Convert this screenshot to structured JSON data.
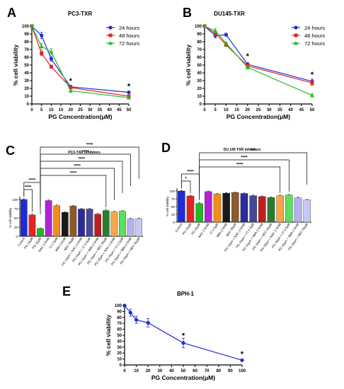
{
  "panel_letters": [
    "A",
    "B",
    "C",
    "D",
    "E"
  ],
  "colors": {
    "blue": "#1f2bd6",
    "red": "#e8231f",
    "green": "#22b922",
    "axis": "#000000"
  },
  "chart_data": [
    {
      "id": "A",
      "type": "line",
      "title": "PC3-TXR",
      "xlabel": "PG Concentration(μM)",
      "ylabel": "% cell viability",
      "xlim": [
        0,
        50
      ],
      "ylim": [
        0,
        100
      ],
      "xticks": [
        0,
        5,
        10,
        15,
        20,
        25,
        30,
        35,
        40,
        45,
        50
      ],
      "yticks": [
        0,
        10,
        20,
        30,
        40,
        50,
        60,
        70,
        80,
        90,
        100
      ],
      "x": [
        0,
        5,
        10,
        20,
        50
      ],
      "series": [
        {
          "name": "24 hours",
          "color": "#1f2bd6",
          "marker": "circle",
          "values": [
            100,
            88,
            58,
            22,
            15
          ],
          "err": [
            0,
            4,
            3,
            2,
            1
          ]
        },
        {
          "name": "48 hours",
          "color": "#e8231f",
          "marker": "square",
          "values": [
            100,
            65,
            48,
            21,
            10
          ],
          "err": [
            0,
            3,
            2,
            2,
            1
          ]
        },
        {
          "name": "72 hours",
          "color": "#22b922",
          "marker": "triangle",
          "values": [
            100,
            74,
            67,
            17,
            8
          ],
          "err": [
            0,
            4,
            4,
            2,
            1
          ]
        }
      ],
      "annotations": [
        {
          "x": 20,
          "y": 30,
          "text": "*"
        },
        {
          "x": 50,
          "y": 23,
          "text": "*"
        }
      ],
      "legend": "top-right"
    },
    {
      "id": "B",
      "type": "line",
      "title": "DU145-TXR",
      "xlabel": "PG Concentration(μM)",
      "ylabel": "% cell viability",
      "xlim": [
        0,
        50
      ],
      "ylim": [
        0,
        100
      ],
      "xticks": [
        0,
        5,
        10,
        15,
        20,
        25,
        30,
        35,
        40,
        45,
        50
      ],
      "yticks": [
        0,
        10,
        20,
        30,
        40,
        50,
        60,
        70,
        80,
        90,
        100
      ],
      "x": [
        0,
        5,
        10,
        20,
        50
      ],
      "series": [
        {
          "name": "24 hours",
          "color": "#1f2bd6",
          "marker": "circle",
          "values": [
            100,
            88,
            89,
            51,
            29
          ],
          "err": [
            0,
            3,
            2,
            2,
            3
          ]
        },
        {
          "name": "48 hours",
          "color": "#e8231f",
          "marker": "square",
          "values": [
            100,
            91,
            76,
            49,
            27
          ],
          "err": [
            0,
            3,
            2,
            2,
            3
          ]
        },
        {
          "name": "72 hours",
          "color": "#22b922",
          "marker": "triangle",
          "values": [
            100,
            94,
            78,
            47,
            11
          ],
          "err": [
            0,
            3,
            2,
            2,
            2
          ]
        }
      ],
      "annotations": [
        {
          "x": 20,
          "y": 62,
          "text": "*"
        },
        {
          "x": 50,
          "y": 38,
          "text": "*"
        }
      ],
      "legend": "top-right"
    },
    {
      "id": "C",
      "type": "bar",
      "title": "PC3-TXR inhibitors",
      "ylabel": "% cell viability",
      "ylim": [
        0,
        100
      ],
      "yticks": [
        0,
        25,
        50,
        75,
        100
      ],
      "categories": [
        "Control",
        "PG 10μM",
        "PG 20μM",
        "NAC 2.5mM",
        "Cl 2.5μM",
        "3MA 2.5mM",
        "NEC 50μM",
        "PG 10μm + NAC 2.5mM",
        "PG 10μm + Cl 2.5μM",
        "PG 10μm + 3MA 2.5mM",
        "PG 10μm + NEC 50μM",
        "PG 20μm + NAC 2.5mM",
        "PG 20μm + Cl 2.5μM",
        "PG 20μm + 3MA 2.5mM",
        "PG 20μm + NEC 50μM"
      ],
      "values": [
        100,
        58,
        21,
        97,
        83,
        65,
        82,
        74,
        74,
        60,
        70,
        66,
        68,
        47,
        48
      ],
      "err": [
        2,
        2,
        2,
        2,
        2,
        2,
        2,
        2,
        2,
        2,
        2,
        2,
        2,
        2,
        2
      ],
      "colors": [
        "#1f2bd6",
        "#e8231f",
        "#22b922",
        "#b322d8",
        "#f28c1c",
        "#1a1a1a",
        "#8c5a2b",
        "#2b2b9b",
        "#47479a",
        "#c11d1d",
        "#2e7a2e",
        "#f6a64a",
        "#5ae05a",
        "#b2b2f0",
        "#c8c8f5"
      ],
      "brackets": [
        {
          "from": 0,
          "to": 1,
          "text": "****",
          "level": 1
        },
        {
          "from": 0,
          "to": 2,
          "text": "****",
          "level": 2
        },
        {
          "from": 2,
          "to": 10,
          "text": "****",
          "level": 3
        },
        {
          "from": 2,
          "to": 11,
          "text": "****",
          "level": 4
        },
        {
          "from": 2,
          "to": 12,
          "text": "****",
          "level": 5
        },
        {
          "from": 2,
          "to": 13,
          "text": "****",
          "level": 6
        },
        {
          "from": 2,
          "to": 14,
          "text": "****",
          "level": 7
        }
      ]
    },
    {
      "id": "D",
      "type": "bar",
      "title": "DU 145 TXR inhibitors",
      "ylabel": "% cell viability",
      "ylim": [
        0,
        100
      ],
      "yticks": [
        0,
        25,
        50,
        75,
        100
      ],
      "categories": [
        "Control",
        "PG 10μM",
        "PG 20μM",
        "NAC 2.5mM",
        "Cl 2.5μM",
        "3MA 2.5mM",
        "NEC 50μM",
        "PG 10μm + NAC 2.5mM",
        "PG 10μm + Cl 2.5μM",
        "PG 10μm + 3MA 2.5mM",
        "PG 10μm + NEC 50μM",
        "PG 20μm + NAC 2.5mM",
        "PG 20μm + Cl 2.5μM",
        "PG 20μm + 3MA 2.5mM",
        "PG 20μm + NEC 50μM"
      ],
      "values": [
        100,
        84,
        60,
        98,
        90,
        93,
        95,
        92,
        85,
        82,
        79,
        85,
        87,
        78,
        71
      ],
      "err": [
        2,
        2,
        3,
        2,
        2,
        2,
        2,
        2,
        2,
        2,
        2,
        2,
        2,
        2,
        2
      ],
      "colors": [
        "#1f2bd6",
        "#e8231f",
        "#22b922",
        "#b322d8",
        "#f28c1c",
        "#1a1a1a",
        "#8c5a2b",
        "#2b2b9b",
        "#47479a",
        "#c11d1d",
        "#2e7a2e",
        "#f6a64a",
        "#5ae05a",
        "#b2b2f0",
        "#c8c8f5"
      ],
      "brackets": [
        {
          "from": 0,
          "to": 1,
          "text": "*",
          "level": 1
        },
        {
          "from": 0,
          "to": 2,
          "text": "****",
          "level": 2
        },
        {
          "from": 2,
          "to": 11,
          "text": "****",
          "level": 3
        },
        {
          "from": 2,
          "to": 12,
          "text": "****",
          "level": 4
        },
        {
          "from": 2,
          "to": 14,
          "text": "***",
          "level": 5
        }
      ]
    },
    {
      "id": "E",
      "type": "line",
      "title": "BPH-1",
      "xlabel": "PG Concentration(μM)",
      "ylabel": "% cell viability",
      "xlim": [
        0,
        100
      ],
      "ylim": [
        0,
        100
      ],
      "xticks": [
        0,
        10,
        20,
        30,
        40,
        50,
        60,
        70,
        80,
        90,
        100
      ],
      "yticks": [
        0,
        10,
        20,
        30,
        40,
        50,
        60,
        70,
        80,
        90,
        100
      ],
      "x": [
        0,
        5,
        10,
        20,
        50,
        100
      ],
      "series": [
        {
          "name": "",
          "color": "#1f2bd6",
          "marker": "circle",
          "values": [
            100,
            88,
            76,
            71,
            37,
            8
          ],
          "err": [
            0,
            6,
            6,
            7,
            8,
            1
          ]
        }
      ],
      "annotations": [
        {
          "x": 50,
          "y": 50,
          "text": "*"
        },
        {
          "x": 100,
          "y": 19,
          "text": "*"
        }
      ]
    }
  ]
}
